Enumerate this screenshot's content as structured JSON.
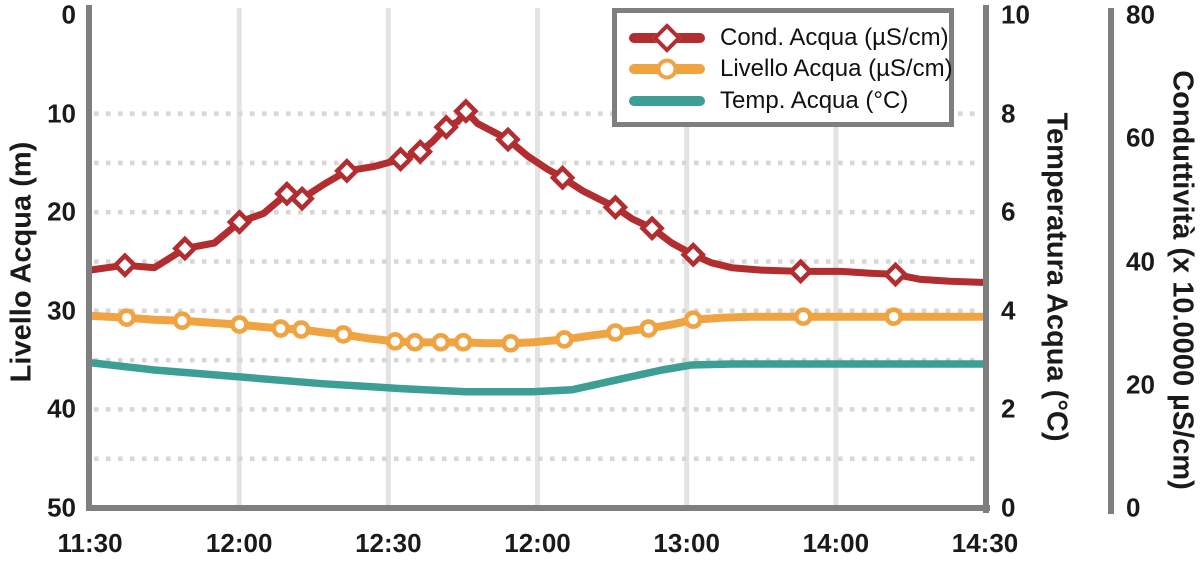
{
  "colors": {
    "axis_gray": "#7f7f7f",
    "vertical_grid": "#e3e3e3",
    "dotted_grid": "#d6d6d6",
    "text": "#1a1a1a",
    "background": "#ffffff"
  },
  "chart_data": {
    "type": "line",
    "title": "",
    "note": "series point format: [x_fraction_of_plot_width, value_on_own_axis, has_marker]",
    "x_axis": {
      "tick_labels": [
        "11:30",
        "12:00",
        "12:30",
        "12:00",
        "13:00",
        "14:00",
        "14:30"
      ],
      "gridlines_at_inner_ticks": true
    },
    "left_axis": {
      "title": "Livello Acqua (m)",
      "tick_labels": [
        "0",
        "10",
        "20",
        "30",
        "40",
        "50"
      ],
      "min": 0,
      "max": 50,
      "inverted": true
    },
    "temp_axis": {
      "title": "Temperatura Acqua (°C)",
      "tick_labels": [
        "10",
        "8",
        "6",
        "4",
        "2",
        "0"
      ],
      "min": 0,
      "max": 10
    },
    "cond_axis": {
      "title": "Conduttività (x 10.0000 µS/cm)",
      "tick_labels": [
        "80",
        "60",
        "40",
        "20",
        "0"
      ],
      "min": 0,
      "max": 80
    },
    "grid": {
      "horizontal_dotted_at_left_axis_values": [
        10,
        15,
        20,
        25,
        30,
        35,
        40,
        45
      ]
    },
    "legend": {
      "position": "top-right"
    },
    "series": [
      {
        "name": "Cond. Acqua (µS/cm)",
        "axis": "cond",
        "color": "#b12d30",
        "marker": "diamond",
        "line_width": 7,
        "points": [
          [
            0.0,
            38.6,
            0
          ],
          [
            0.039,
            39.4,
            1
          ],
          [
            0.072,
            39.0,
            0
          ],
          [
            0.106,
            42.1,
            1
          ],
          [
            0.139,
            43.0,
            0
          ],
          [
            0.167,
            46.4,
            1
          ],
          [
            0.194,
            47.8,
            0
          ],
          [
            0.22,
            51.0,
            1
          ],
          [
            0.237,
            50.2,
            1
          ],
          [
            0.261,
            52.5,
            0
          ],
          [
            0.287,
            54.7,
            1
          ],
          [
            0.317,
            55.4,
            0
          ],
          [
            0.347,
            56.6,
            1
          ],
          [
            0.369,
            57.8,
            1
          ],
          [
            0.383,
            59.5,
            0
          ],
          [
            0.398,
            61.8,
            1
          ],
          [
            0.411,
            62.7,
            0
          ],
          [
            0.42,
            64.4,
            1
          ],
          [
            0.433,
            62.4,
            0
          ],
          [
            0.45,
            61.1,
            0
          ],
          [
            0.467,
            59.8,
            1
          ],
          [
            0.489,
            57.1,
            0
          ],
          [
            0.511,
            55.0,
            0
          ],
          [
            0.528,
            53.6,
            1
          ],
          [
            0.55,
            51.5,
            0
          ],
          [
            0.572,
            49.9,
            0
          ],
          [
            0.587,
            48.8,
            1
          ],
          [
            0.606,
            46.9,
            0
          ],
          [
            0.628,
            45.4,
            1
          ],
          [
            0.65,
            43.0,
            0
          ],
          [
            0.674,
            41.1,
            1
          ],
          [
            0.694,
            39.8,
            0
          ],
          [
            0.717,
            39.0,
            0
          ],
          [
            0.75,
            38.6,
            0
          ],
          [
            0.794,
            38.4,
            1
          ],
          [
            0.839,
            38.4,
            0
          ],
          [
            0.872,
            38.1,
            0
          ],
          [
            0.9,
            37.9,
            1
          ],
          [
            0.928,
            37.1,
            0
          ],
          [
            0.961,
            36.8,
            0
          ],
          [
            1.0,
            36.6,
            0
          ]
        ]
      },
      {
        "name": "Livello Acqua (µS/cm)",
        "axis": "left",
        "color": "#f0a341",
        "marker": "circle",
        "line_width": 8,
        "points": [
          [
            0.0,
            30.5,
            0
          ],
          [
            0.041,
            30.7,
            1
          ],
          [
            0.072,
            30.9,
            0
          ],
          [
            0.103,
            31.0,
            1
          ],
          [
            0.133,
            31.2,
            0
          ],
          [
            0.167,
            31.4,
            1
          ],
          [
            0.189,
            31.6,
            0
          ],
          [
            0.213,
            31.8,
            1
          ],
          [
            0.236,
            31.9,
            1
          ],
          [
            0.261,
            32.2,
            0
          ],
          [
            0.283,
            32.4,
            1
          ],
          [
            0.311,
            32.8,
            0
          ],
          [
            0.341,
            33.1,
            1
          ],
          [
            0.363,
            33.2,
            1
          ],
          [
            0.392,
            33.2,
            1
          ],
          [
            0.417,
            33.2,
            1
          ],
          [
            0.444,
            33.3,
            0
          ],
          [
            0.47,
            33.3,
            1
          ],
          [
            0.494,
            33.2,
            0
          ],
          [
            0.53,
            32.9,
            1
          ],
          [
            0.561,
            32.5,
            0
          ],
          [
            0.587,
            32.2,
            1
          ],
          [
            0.624,
            31.8,
            1
          ],
          [
            0.65,
            31.4,
            0
          ],
          [
            0.674,
            30.9,
            1
          ],
          [
            0.706,
            30.7,
            0
          ],
          [
            0.739,
            30.6,
            0
          ],
          [
            0.797,
            30.6,
            1
          ],
          [
            0.85,
            30.6,
            0
          ],
          [
            0.898,
            30.6,
            1
          ],
          [
            0.95,
            30.6,
            0
          ],
          [
            1.0,
            30.6,
            0
          ]
        ]
      },
      {
        "name": "Temp. Acqua (°C)",
        "axis": "temp",
        "color": "#3d9e95",
        "marker": "none",
        "line_width": 7.5,
        "points": [
          [
            0.0,
            2.95,
            0
          ],
          [
            0.072,
            2.8,
            0
          ],
          [
            0.167,
            2.66,
            0
          ],
          [
            0.261,
            2.52,
            0
          ],
          [
            0.35,
            2.42,
            0
          ],
          [
            0.42,
            2.36,
            0
          ],
          [
            0.494,
            2.36,
            0
          ],
          [
            0.539,
            2.4,
            0
          ],
          [
            0.594,
            2.62,
            0
          ],
          [
            0.639,
            2.8,
            0
          ],
          [
            0.672,
            2.9,
            0
          ],
          [
            0.717,
            2.92,
            0
          ],
          [
            0.794,
            2.92,
            0
          ],
          [
            0.906,
            2.92,
            0
          ],
          [
            1.0,
            2.92,
            0
          ]
        ]
      }
    ]
  }
}
